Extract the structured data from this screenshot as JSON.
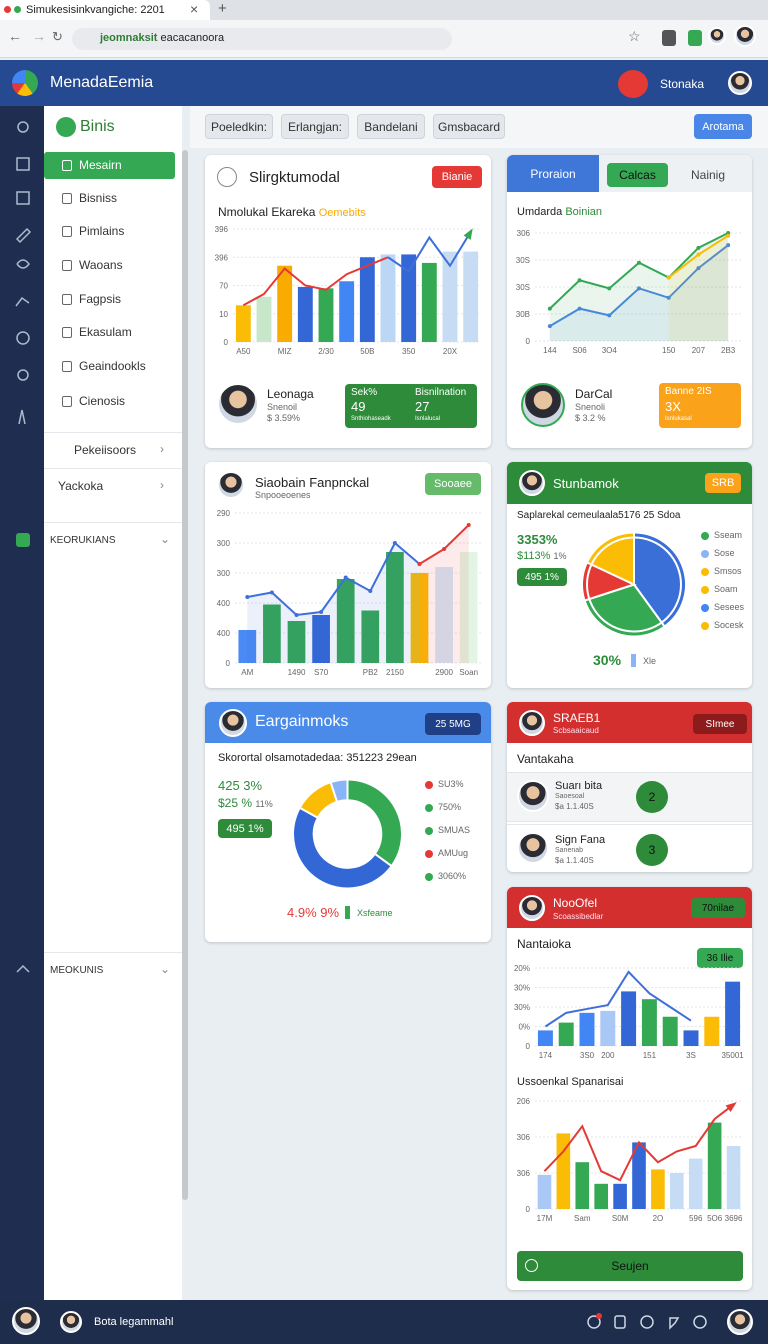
{
  "browser": {
    "tab_title": "Simukesisinkvangiche: 2201",
    "url_host": "jeomnaksit",
    "url_path": "eacacanoora"
  },
  "header": {
    "app_name": "MenadaEemia",
    "user": "Stonaka"
  },
  "sidebar": {
    "title": "Binis",
    "items": [
      "Mesairn",
      "Bisniss",
      "Pimlains",
      "Waoans",
      "Fagpsis",
      "Ekasulam",
      "Geaindookls",
      "Cienosis"
    ],
    "groups": [
      "Pekeiisoors",
      "Yackoka"
    ],
    "sections": [
      "KEORUKIANS",
      "MEOKUNIS"
    ]
  },
  "toolbar": {
    "filters": [
      "Poeledkin:",
      "Erlangjan:",
      "Bandelani",
      "Gmsbacard"
    ],
    "action": "Arotama"
  },
  "cards": [
    {
      "title": "Slirgktumodal",
      "badge": "Bianie",
      "subtitle": "Nmolukal Ekareka",
      "highlight": "Oemebits",
      "chart": {
        "ylim": [
          0,
          400
        ],
        "yticks": [
          0,
          {
            "value": 100,
            "label": "10"
          },
          {
            "value": 200,
            "label": "70"
          },
          {
            "value": 300,
            "label": "396"
          },
          {
            "value": 400,
            "label": "396"
          }
        ],
        "categories": [
          "A50",
          null,
          "MIZ",
          null,
          "2/30",
          null,
          "50B",
          null,
          "350",
          null,
          "20X",
          null
        ],
        "bars": {
          "values": [
            130,
            160,
            270,
            195,
            190,
            215,
            300,
            310,
            310,
            280,
            320,
            320
          ],
          "colors": [
            "#fbbc05",
            "#c8e6c9",
            "#f9ab00",
            "#3367d6",
            "#34a853",
            "#4285f4",
            "#3367d6",
            "#bcd6f5",
            "#3367d6",
            "#34a853",
            "#c6dcf5",
            "#c6dcf5"
          ]
        },
        "lines": [
          {
            "color": "#e53935",
            "values": [
              130,
              170,
              260,
              200,
              185,
              240,
              270,
              300,
              null,
              null,
              null,
              null
            ]
          },
          {
            "color": "#3f6fd8",
            "values": [
              null,
              null,
              null,
              null,
              null,
              null,
              null,
              300,
              250,
              370,
              270,
              390
            ],
            "arrow": "#34a853"
          }
        ]
      },
      "person": {
        "name": "Leonaga",
        "role": "Snenoil",
        "stat": "$ 3.59%"
      },
      "stats": {
        "label1": "Sek%",
        "value1": 49,
        "note1": "Snthiohaseadk",
        "label2": "Bisnilnation",
        "value2": 27,
        "note2": "Isnlalucal"
      }
    },
    {
      "tabs": [
        "Proraion",
        "Calcas",
        "Nainig"
      ],
      "subtitle": "Umdarda",
      "highlight": "Boinian",
      "chart": {
        "ylim": [
          0,
          400
        ],
        "yticks": [
          0,
          {
            "value": 100,
            "label": "30B"
          },
          {
            "value": 200,
            "label": "30S"
          },
          {
            "value": 300,
            "label": "30S"
          },
          {
            "value": 400,
            "label": "306"
          }
        ],
        "categories": [
          "144",
          "S06",
          "3O4",
          null,
          "150",
          "207",
          "2B3"
        ],
        "area": true,
        "lines": [
          {
            "color": "#4a86e8",
            "values": [
              55,
              120,
              95,
              195,
              160,
              270,
              355
            ]
          },
          {
            "color": "#34a853",
            "values": [
              120,
              225,
              195,
              290,
              235,
              345,
              400
            ]
          },
          {
            "color": "#fbbc05",
            "values": [
              null,
              null,
              null,
              null,
              235,
              320,
              390
            ]
          }
        ]
      },
      "person": {
        "name": "DarCal",
        "role": "Snenoli",
        "stat": "$ 3.2 %"
      },
      "stats": {
        "label": "Banne 2IS",
        "value": "3X",
        "note": "Isnlukasal"
      }
    },
    {
      "title": "Siaobain Fanpnckal",
      "subtitle": "Snpooeoenes",
      "badge": "Sooaee",
      "chart": {
        "ylim": [
          0,
          500
        ],
        "yticks": [
          0,
          {
            "value": 100,
            "label": "400"
          },
          {
            "value": 200,
            "label": "400"
          },
          {
            "value": 300,
            "label": "300"
          },
          {
            "value": 400,
            "label": "300"
          },
          {
            "value": 500,
            "label": "290"
          }
        ],
        "categories": [
          "AM",
          null,
          "1490",
          "S70",
          null,
          "PB2",
          "2150",
          null,
          "2900",
          "Soan"
        ],
        "area": true,
        "bars": {
          "values": [
            110,
            195,
            140,
            160,
            280,
            175,
            370,
            300,
            320,
            370
          ],
          "colors": [
            "#4a8af4",
            "#34a853",
            "#34a853",
            "#3367d6",
            "#34a853",
            "#34a853",
            "#34a853",
            "#fbbc05",
            "#d4e6f8",
            "#e2f5e4"
          ]
        },
        "lines": [
          {
            "color": "#3f6fd8",
            "values": [
              220,
              235,
              160,
              170,
              285,
              240,
              400,
              330,
              null,
              null
            ]
          },
          {
            "color": "#e53935",
            "values": [
              null,
              null,
              null,
              null,
              null,
              null,
              null,
              330,
              380,
              460
            ]
          }
        ]
      }
    },
    {
      "title": "Stunbamok",
      "badge": "SRB",
      "subtitle": "Saplarekal cemeulaala5176 25 Sdoa",
      "metric": "3353%",
      "sub_metric": "$113%",
      "sub_change": "1%",
      "pill": "495 1%",
      "pie": {
        "values": [
          40,
          30,
          12,
          18
        ],
        "colors": [
          "#3a6fd8",
          "#34a853",
          "#e53935",
          "#fbbc05"
        ]
      },
      "legend": {
        "labels": [
          "Sseam",
          "Sose",
          "Smsos",
          "Soam",
          "Sesees",
          "Socesk"
        ],
        "colors": [
          "#34a853",
          "#8ab4f8",
          "#fbbc05",
          "#fbbc05",
          "#4285f4",
          "#fbbc05"
        ]
      },
      "footer_value": "30%",
      "footer_label": "Xle"
    },
    {
      "title": "Eargainmoks",
      "badge": "25 5MG",
      "subtitle": "Skorortal olsamotadedaa: 351223 29ean",
      "metric": "425 3%",
      "sub_metric": "$25 %",
      "sub_change": "11%",
      "pill": "495 1%",
      "pie": {
        "values": [
          35,
          48,
          12,
          5
        ],
        "colors": [
          "#34a853",
          "#3367d6",
          "#fbbc05",
          "#8ab4f8"
        ],
        "donut": true
      },
      "legend": {
        "labels": [
          "SU3%",
          "750%",
          "SMUAS",
          "AMUug",
          "3060%"
        ],
        "colors": [
          "#e53935",
          "#34a853",
          "#34a853",
          "#e53935",
          "#34a853"
        ]
      },
      "footer_value": "4.9% 9%",
      "footer_label": "Xsfeame"
    },
    {
      "title": "SRAEB1",
      "subtitle": "Scbsaaicaud",
      "badge": "SImee",
      "heading": "Vantakaha",
      "people": [
        {
          "name": "Suarı bita",
          "role": "Saoesoal",
          "stat": "$a 1.1.40S",
          "rank": 2
        },
        {
          "name": "Sign Fana",
          "role": "Sanenab",
          "stat": "$a 1.1.40S",
          "rank": 3
        }
      ]
    },
    {
      "title": "NooOfel",
      "subtitle": "Scoassibedlar",
      "badge": "70nilae",
      "heading": "Nantaioka",
      "pill": "36 Ilie",
      "chart": {
        "ylim": [
          0,
          400
        ],
        "yticks": [
          0,
          {
            "value": 100,
            "label": "0%"
          },
          {
            "value": 200,
            "label": "30%"
          },
          {
            "value": 300,
            "label": "30%"
          },
          {
            "value": 400,
            "label": "20%"
          }
        ],
        "categories": [
          "174",
          null,
          "3S0",
          "200",
          null,
          "151",
          null,
          "3S",
          null,
          "35001"
        ],
        "bars": {
          "values": [
            80,
            120,
            170,
            180,
            280,
            240,
            150,
            80,
            150,
            330
          ],
          "colors": [
            "#4285f4",
            "#34a853",
            "#4285f4",
            "#a9c8f5",
            "#3367d6",
            "#34a853",
            "#34a853",
            "#3367d6",
            "#fbbc05",
            "#3367d6"
          ]
        },
        "lines": [
          {
            "color": "#3f6fd8",
            "values": [
              100,
              170,
              190,
              210,
              380,
              270,
              200,
              130,
              null,
              null
            ]
          }
        ]
      },
      "heading2": "Ussoenkal Spanarisai",
      "chart2": {
        "ylim": [
          0,
          300
        ],
        "yticks": [
          0,
          {
            "value": 100,
            "label": "306"
          },
          {
            "value": 200,
            "label": "306"
          },
          {
            "value": 300,
            "label": "206"
          }
        ],
        "categories": [
          "17M",
          null,
          "Sam",
          null,
          "S0M",
          null,
          "2O",
          null,
          "596",
          "5O6",
          "3696"
        ],
        "bars": {
          "values": [
            95,
            210,
            130,
            70,
            70,
            185,
            110,
            100,
            140,
            240,
            175
          ],
          "colors": [
            "#a9c8f5",
            "#fbbc05",
            "#34a853",
            "#34a853",
            "#3367d6",
            "#3367d6",
            "#fbbc05",
            "#c6dcf5",
            "#c6dcf5",
            "#34a853",
            "#c6dcf5"
          ]
        },
        "lines": [
          {
            "color": "#e53935",
            "values": [
              105,
              160,
              230,
              105,
              80,
              185,
              130,
              160,
              175,
              250,
              290
            ],
            "arrow": "#e53935"
          }
        ]
      },
      "button": "Seujen"
    }
  ],
  "footer": {
    "user": "Bota legammahl"
  }
}
